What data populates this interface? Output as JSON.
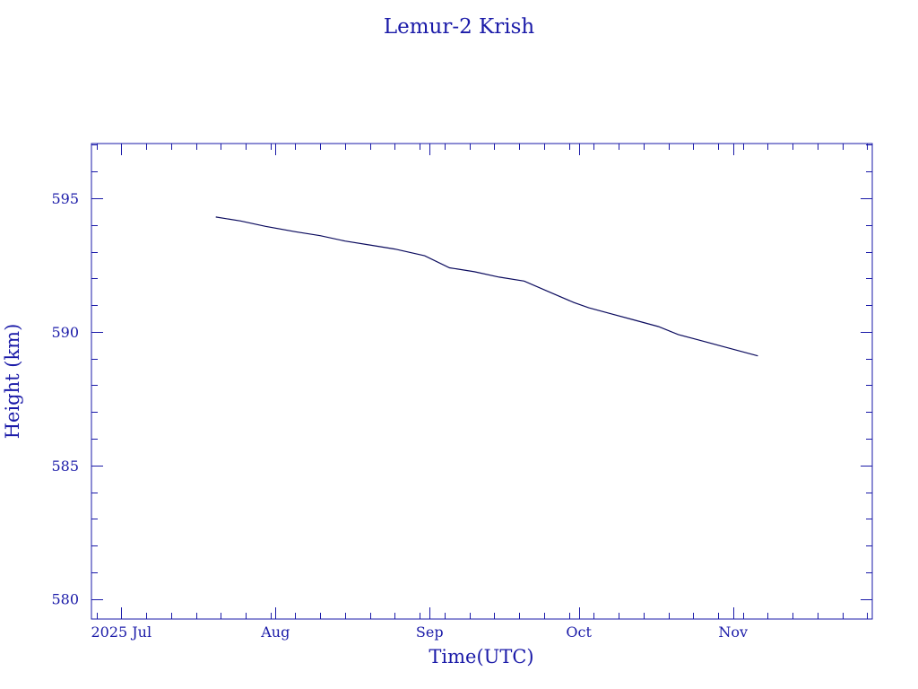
{
  "colors": {
    "text": "#1a1aa8",
    "axes": "#1a1aa8",
    "series": "#0b0b5e",
    "background": "#ffffff"
  },
  "chart_data": {
    "type": "line",
    "title": "Lemur-2 Krish",
    "xlabel": "Time(UTC)",
    "ylabel": "Height (km)",
    "x_axis": {
      "type": "date",
      "range": [
        "2025-06-25",
        "2025-11-29"
      ],
      "tick_labels": [
        {
          "date": "2025-07-01",
          "label": "2025 Jul"
        },
        {
          "date": "2025-08-01",
          "label": "Aug"
        },
        {
          "date": "2025-09-01",
          "label": "Sep"
        },
        {
          "date": "2025-10-01",
          "label": "Oct"
        },
        {
          "date": "2025-11-01",
          "label": "Nov"
        }
      ]
    },
    "y_axis": {
      "range": [
        579.25,
        597.05
      ],
      "major_ticks": [
        580,
        585,
        590,
        595
      ]
    },
    "grid": false,
    "series": [
      {
        "x": [
          "2025-07-20",
          "2025-07-25",
          "2025-07-30",
          "2025-08-05",
          "2025-08-10",
          "2025-08-15",
          "2025-08-20",
          "2025-08-25",
          "2025-08-31",
          "2025-09-05",
          "2025-09-10",
          "2025-09-15",
          "2025-09-20",
          "2025-09-25",
          "2025-09-30",
          "2025-10-03",
          "2025-10-07",
          "2025-10-12",
          "2025-10-17",
          "2025-10-21",
          "2025-10-25",
          "2025-10-30",
          "2025-11-06"
        ],
        "y": [
          594.3,
          594.15,
          593.95,
          593.75,
          593.6,
          593.4,
          593.25,
          593.1,
          592.85,
          592.4,
          592.25,
          592.05,
          591.9,
          591.5,
          591.1,
          590.9,
          590.7,
          590.45,
          590.2,
          589.9,
          589.7,
          589.45,
          589.1
        ]
      }
    ]
  }
}
